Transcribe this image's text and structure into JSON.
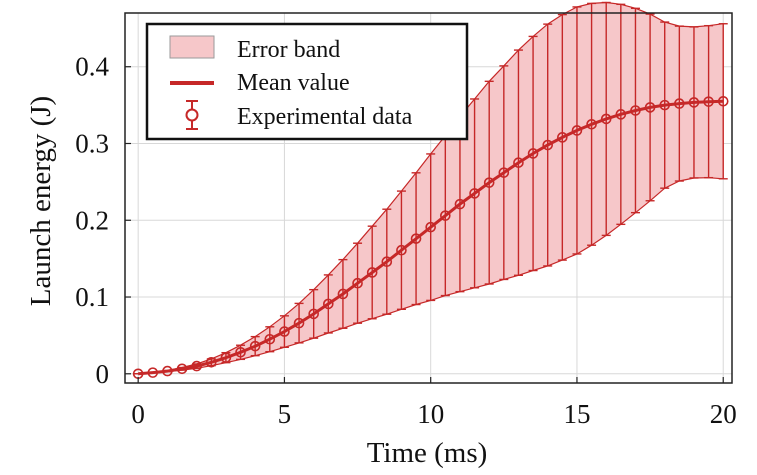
{
  "chart_data": {
    "type": "line",
    "title": "",
    "xlabel": "Time (ms)",
    "ylabel": "Launch energy (J)",
    "xlim": [
      -0.45,
      20.3
    ],
    "ylim": [
      -0.012,
      0.47
    ],
    "xticks": [
      0,
      5,
      10,
      15,
      20
    ],
    "xtick_labels": [
      "0",
      "5",
      "10",
      "15",
      "20"
    ],
    "yticks": [
      0,
      0.1,
      0.2,
      0.3,
      0.4
    ],
    "ytick_labels": [
      "0",
      "0.1",
      "0.2",
      "0.3",
      "0.4"
    ],
    "grid": true,
    "legend_position": "top-left",
    "legend": [
      {
        "name": "Error band",
        "kind": "band"
      },
      {
        "name": "Mean value",
        "kind": "line"
      },
      {
        "name": "Experimental data",
        "kind": "errorbar"
      }
    ],
    "colors": {
      "main": "#c62828",
      "band_fill": "#f6c7c9",
      "grid": "#d8d8d8"
    },
    "x": [
      0,
      0.5,
      1,
      1.5,
      2,
      2.5,
      3,
      3.5,
      4,
      4.5,
      5,
      5.5,
      6,
      6.5,
      7,
      7.5,
      8,
      8.5,
      9,
      9.5,
      10,
      10.5,
      11,
      11.5,
      12,
      12.5,
      13,
      13.5,
      14,
      14.5,
      15,
      15.5,
      16,
      16.5,
      17,
      17.5,
      18,
      18.5,
      19,
      19.5,
      20
    ],
    "mean": [
      0,
      0.0015,
      0.0035,
      0.0065,
      0.01,
      0.015,
      0.021,
      0.028,
      0.036,
      0.045,
      0.055,
      0.066,
      0.078,
      0.091,
      0.104,
      0.118,
      0.132,
      0.146,
      0.161,
      0.176,
      0.191,
      0.206,
      0.221,
      0.235,
      0.249,
      0.262,
      0.275,
      0.287,
      0.298,
      0.308,
      0.317,
      0.325,
      0.332,
      0.338,
      0.343,
      0.347,
      0.35,
      0.352,
      0.3535,
      0.3545,
      0.355
    ],
    "upper": [
      0,
      0.0018,
      0.0043,
      0.0082,
      0.0128,
      0.0194,
      0.0275,
      0.0372,
      0.0484,
      0.0612,
      0.0755,
      0.0917,
      0.1096,
      0.1288,
      0.1487,
      0.1701,
      0.1923,
      0.2144,
      0.238,
      0.2618,
      0.2864,
      0.3101,
      0.335,
      0.358,
      0.381,
      0.4011,
      0.4217,
      0.4395,
      0.4555,
      0.4679,
      0.4779,
      0.4825,
      0.4837,
      0.4813,
      0.4761,
      0.4686,
      0.4582,
      0.4529,
      0.4519,
      0.4535,
      0.456
    ],
    "lower": [
      0,
      0.0012,
      0.0027,
      0.0048,
      0.0072,
      0.0106,
      0.0145,
      0.0188,
      0.0236,
      0.0288,
      0.0345,
      0.0403,
      0.0464,
      0.0532,
      0.0593,
      0.0659,
      0.0717,
      0.0776,
      0.084,
      0.0902,
      0.0956,
      0.1019,
      0.107,
      0.112,
      0.117,
      0.1229,
      0.1283,
      0.1345,
      0.1405,
      0.1481,
      0.1561,
      0.1675,
      0.1803,
      0.1947,
      0.2099,
      0.2254,
      0.2418,
      0.2511,
      0.2551,
      0.2555,
      0.254
    ]
  }
}
